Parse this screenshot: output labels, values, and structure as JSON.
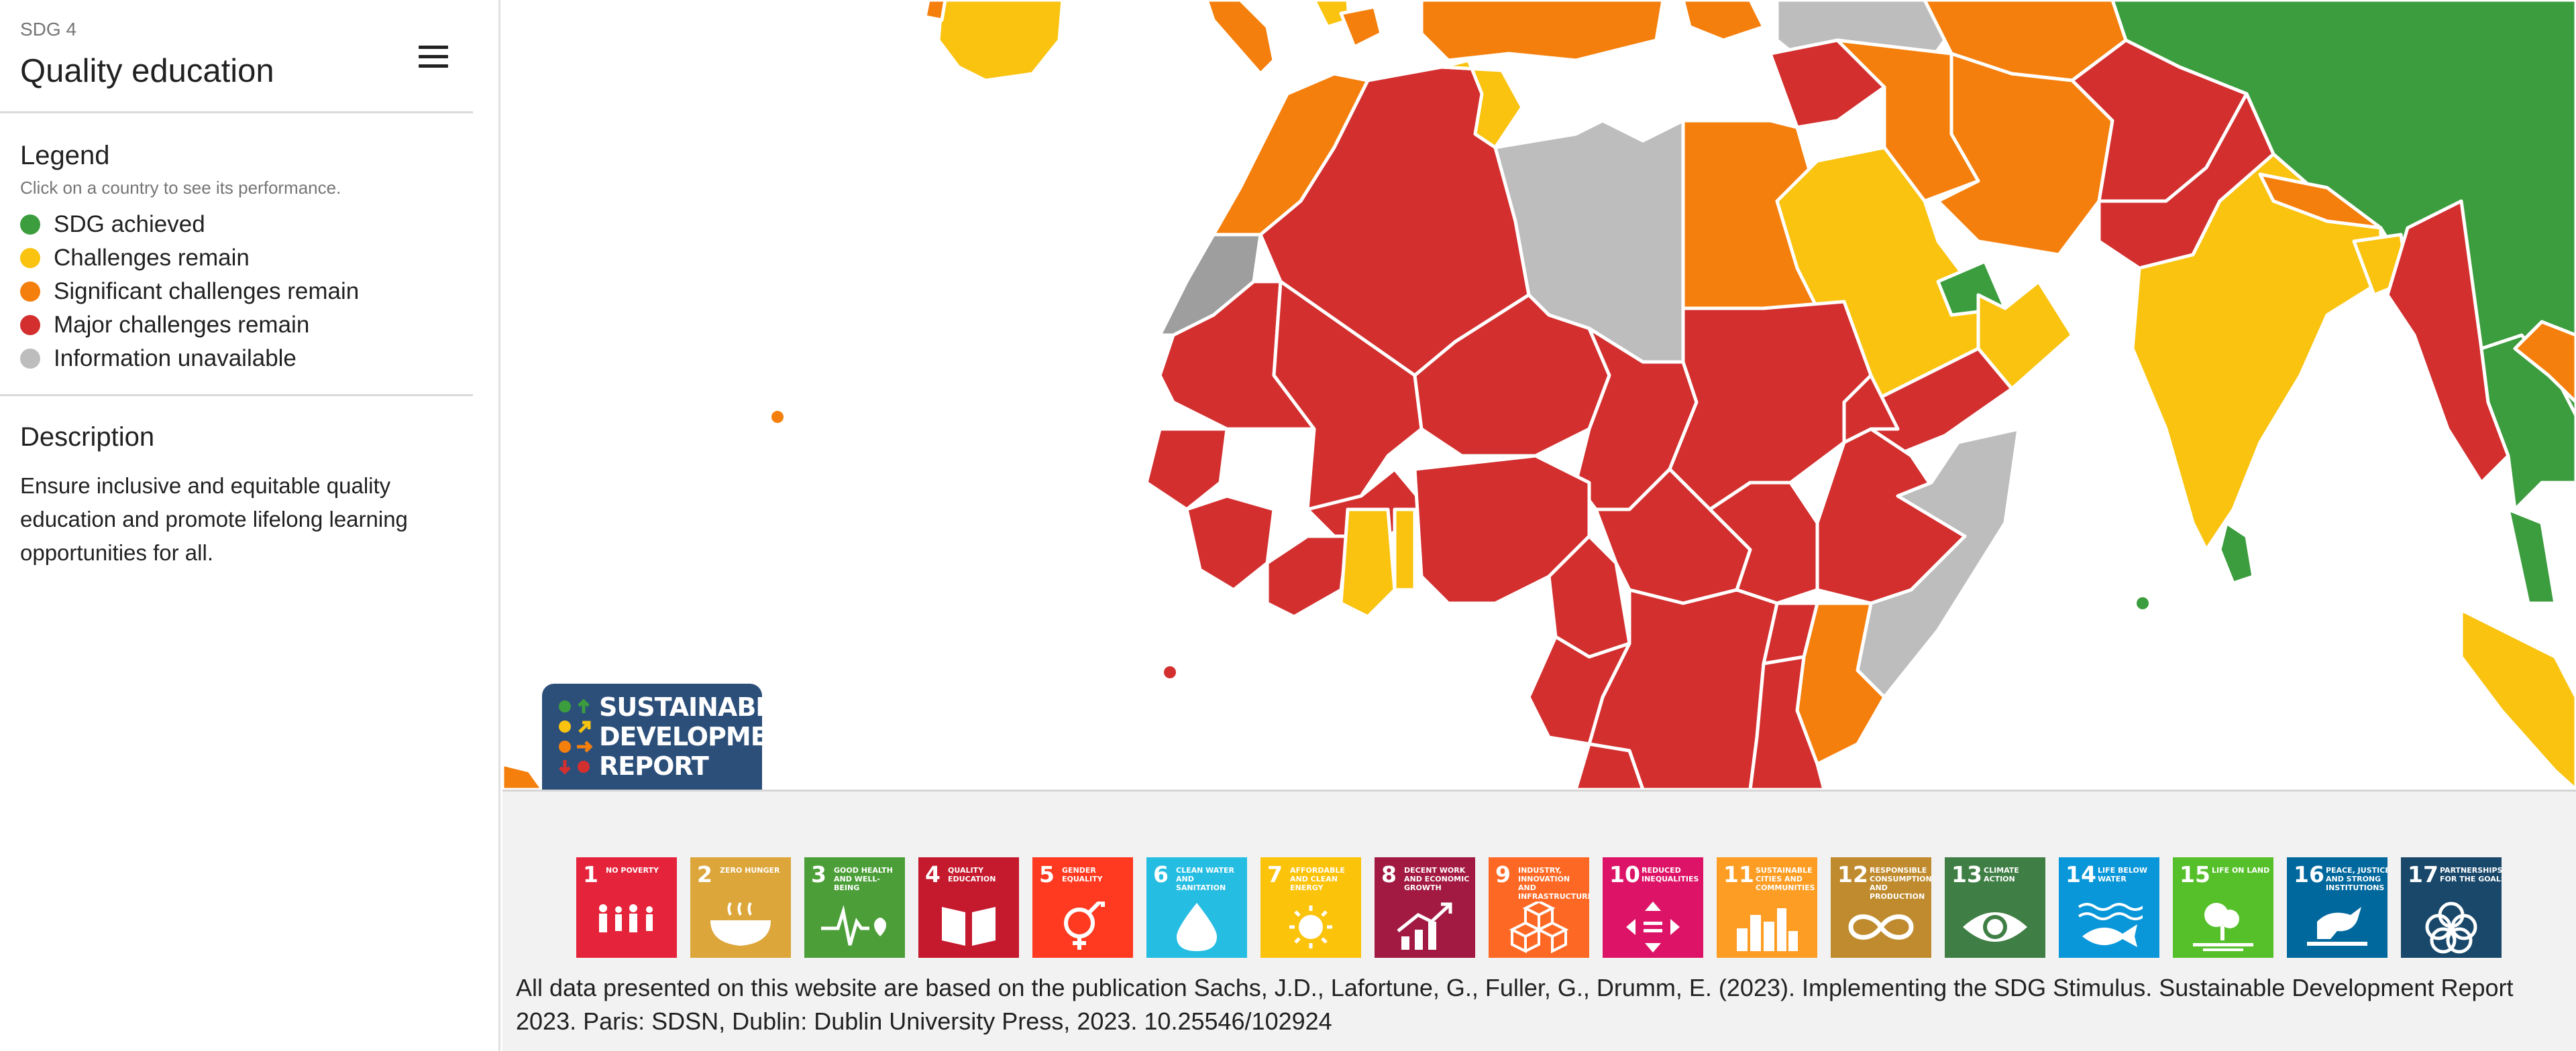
{
  "sidebar": {
    "sdg_label": "SDG 4",
    "title": "Quality education",
    "legend_title": "Legend",
    "legend_subtitle": "Click on a country to see its performance.",
    "legend": [
      {
        "label": "SDG achieved",
        "color": "#3c9d3e"
      },
      {
        "label": "Challenges remain",
        "color": "#f9c30f"
      },
      {
        "label": "Significant challenges remain",
        "color": "#f57f0c"
      },
      {
        "label": "Major challenges remain",
        "color": "#d32f2f"
      },
      {
        "label": "Information unavailable",
        "color": "#bdbdbd"
      }
    ],
    "description_title": "Description",
    "description": "Ensure inclusive and equitable quality education and promote lifelong learning opportunities for all."
  },
  "map": {
    "colors": {
      "achieved": "#3c9d3e",
      "challenges": "#f9c30f",
      "significant": "#f57f0c",
      "major": "#d32f2f",
      "unavailable": "#bdbdbd"
    }
  },
  "badge": {
    "line1": "SUSTAINABLE",
    "line2": "DEVELOPMENT",
    "line3": "REPORT"
  },
  "goals": [
    {
      "num": "1",
      "title": "NO POVERTY",
      "color": "#e5243b"
    },
    {
      "num": "2",
      "title": "ZERO HUNGER",
      "color": "#dda63a"
    },
    {
      "num": "3",
      "title": "GOOD HEALTH AND WELL-BEING",
      "color": "#4c9f38"
    },
    {
      "num": "4",
      "title": "QUALITY EDUCATION",
      "color": "#c5192d"
    },
    {
      "num": "5",
      "title": "GENDER EQUALITY",
      "color": "#ff3a21"
    },
    {
      "num": "6",
      "title": "CLEAN WATER AND SANITATION",
      "color": "#26bde2"
    },
    {
      "num": "7",
      "title": "AFFORDABLE AND CLEAN ENERGY",
      "color": "#fcc30b"
    },
    {
      "num": "8",
      "title": "DECENT WORK AND ECONOMIC GROWTH",
      "color": "#a21942"
    },
    {
      "num": "9",
      "title": "INDUSTRY, INNOVATION AND INFRASTRUCTURE",
      "color": "#fd6925"
    },
    {
      "num": "10",
      "title": "REDUCED INEQUALITIES",
      "color": "#dd1367"
    },
    {
      "num": "11",
      "title": "SUSTAINABLE CITIES AND COMMUNITIES",
      "color": "#fd9d24"
    },
    {
      "num": "12",
      "title": "RESPONSIBLE CONSUMPTION AND PRODUCTION",
      "color": "#bf8b2e"
    },
    {
      "num": "13",
      "title": "CLIMATE ACTION",
      "color": "#3f7e44"
    },
    {
      "num": "14",
      "title": "LIFE BELOW WATER",
      "color": "#0a97d9"
    },
    {
      "num": "15",
      "title": "LIFE ON LAND",
      "color": "#56c02b"
    },
    {
      "num": "16",
      "title": "PEACE, JUSTICE AND STRONG INSTITUTIONS",
      "color": "#00689d"
    },
    {
      "num": "17",
      "title": "PARTNERSHIPS FOR THE GOALS",
      "color": "#19486a"
    }
  ],
  "citation": "All data presented on this website are based on the publication Sachs, J.D., Lafortune, G., Fuller, G., Drumm, E. (2023). Implementing the SDG Stimulus. Sustainable Development Report 2023. Paris: SDSN, Dublin: Dublin University Press, 2023. 10.25546/102924"
}
